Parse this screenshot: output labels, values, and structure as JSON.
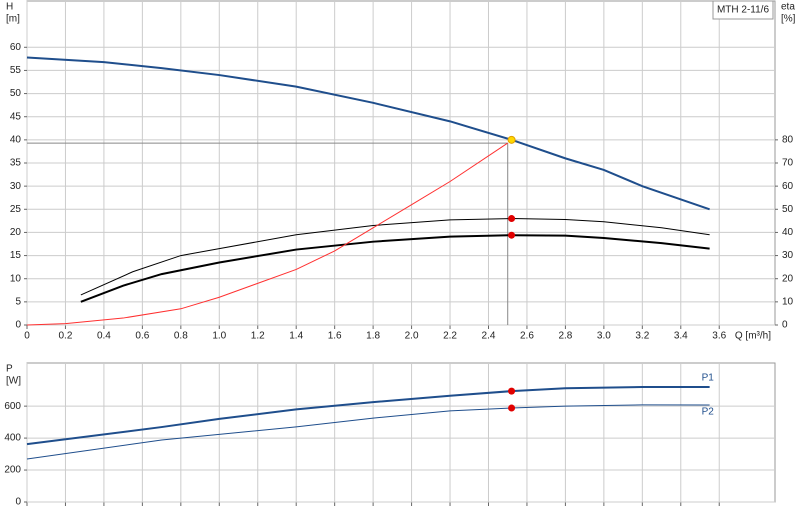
{
  "chart_data": [
    {
      "type": "line",
      "title": "MTH 2-11/6",
      "xlabel": "Q [m³/h]",
      "ylabel": [
        "H",
        "[m]"
      ],
      "y2label": [
        "eta",
        "[%]"
      ],
      "xlim": [
        0,
        3.89
      ],
      "xticks": [
        0,
        0.2,
        0.4,
        0.6,
        0.8,
        {
          "value": 1,
          "label": "1.0"
        },
        1.2,
        1.4,
        1.6,
        1.8,
        {
          "value": 2,
          "label": "2.0"
        },
        2.2,
        2.4,
        2.6,
        2.8,
        {
          "value": 3,
          "label": "3.0"
        },
        3.2,
        3.4,
        3.6
      ],
      "ylim": [
        0,
        70
      ],
      "yticks": [
        0,
        5,
        10,
        15,
        20,
        25,
        30,
        35,
        40,
        45,
        50,
        55,
        60
      ],
      "y2lim": [
        0,
        140
      ],
      "y2ticks": [
        0,
        10,
        20,
        30,
        40,
        50,
        60,
        70,
        80
      ],
      "grid": true,
      "series": [
        {
          "color": "#1f4e8c",
          "line_width": 2,
          "x": [
            0,
            0.4,
            0.7,
            1.0,
            1.4,
            1.8,
            2.2,
            2.52,
            2.8,
            3.0,
            3.2,
            3.55
          ],
          "values": [
            57.8,
            56.8,
            55.5,
            54,
            51.5,
            48,
            44,
            40,
            36,
            33.5,
            30,
            25
          ]
        },
        {
          "color": "#000000",
          "line_width": 1,
          "axis": "y2",
          "x": [
            0.28,
            0.55,
            0.8,
            1.0,
            1.4,
            1.8,
            2.2,
            2.52,
            2.8,
            3.0,
            3.3,
            3.55
          ],
          "values": [
            13,
            23,
            30,
            33,
            39,
            43,
            45.4,
            46,
            45.6,
            44.6,
            42,
            39
          ]
        },
        {
          "color": "#000000",
          "line_width": 2,
          "axis": "y2",
          "x": [
            0.28,
            0.5,
            0.7,
            1.0,
            1.4,
            1.8,
            2.2,
            2.52,
            2.8,
            3.0,
            3.3,
            3.55
          ],
          "values": [
            10,
            17,
            22,
            27,
            32.6,
            36,
            38.2,
            38.8,
            38.6,
            37.6,
            35.4,
            33
          ]
        },
        {
          "color": "#ff3030",
          "line_width": 1,
          "x": [
            0,
            0.2,
            0.5,
            0.8,
            1.0,
            1.4,
            1.6,
            1.8,
            2.0,
            2.2,
            2.5
          ],
          "values": [
            0,
            0.3,
            1.5,
            3.5,
            6,
            12,
            16,
            21,
            26,
            31,
            39.3
          ]
        }
      ],
      "crosshair": {
        "x": 2.5,
        "y": 39.3
      },
      "points": [
        {
          "x": 2.52,
          "y": 40,
          "color": "#ffd700"
        },
        {
          "x": 2.52,
          "y": 46,
          "axis": "y2",
          "color": "#e00000"
        },
        {
          "x": 2.52,
          "y": 38.8,
          "axis": "y2",
          "color": "#e00000"
        }
      ]
    },
    {
      "type": "line",
      "ylabel": [
        "P",
        "[W]"
      ],
      "xlim": [
        0,
        3.89
      ],
      "xticks": [
        0,
        0.2,
        0.4,
        0.6,
        0.8,
        1,
        1.2,
        1.4,
        1.6,
        1.8,
        2,
        2.2,
        2.4,
        2.6,
        2.8,
        3,
        3.2,
        3.4,
        3.6
      ],
      "ylim": [
        0,
        870
      ],
      "yticks": [
        0,
        200,
        400,
        600
      ],
      "grid": true,
      "series": [
        {
          "name": "P1",
          "color": "#1f4e8c",
          "line_width": 2,
          "x": [
            0,
            0.7,
            1.0,
            1.4,
            1.8,
            2.2,
            2.52,
            2.8,
            3.2,
            3.55
          ],
          "values": [
            362,
            469,
            520,
            580,
            625,
            665,
            694,
            712,
            720,
            720
          ]
        },
        {
          "name": "P2",
          "color": "#1f4e8c",
          "line_width": 1,
          "x": [
            0,
            0.7,
            1.4,
            1.8,
            2.2,
            2.52,
            2.8,
            3.2,
            3.55
          ],
          "values": [
            269,
            388,
            470,
            525,
            570,
            588,
            600,
            608,
            607
          ]
        }
      ],
      "points": [
        {
          "x": 2.52,
          "y": 694,
          "color": "#e00000"
        },
        {
          "x": 2.52,
          "y": 588,
          "color": "#e00000"
        }
      ]
    }
  ]
}
